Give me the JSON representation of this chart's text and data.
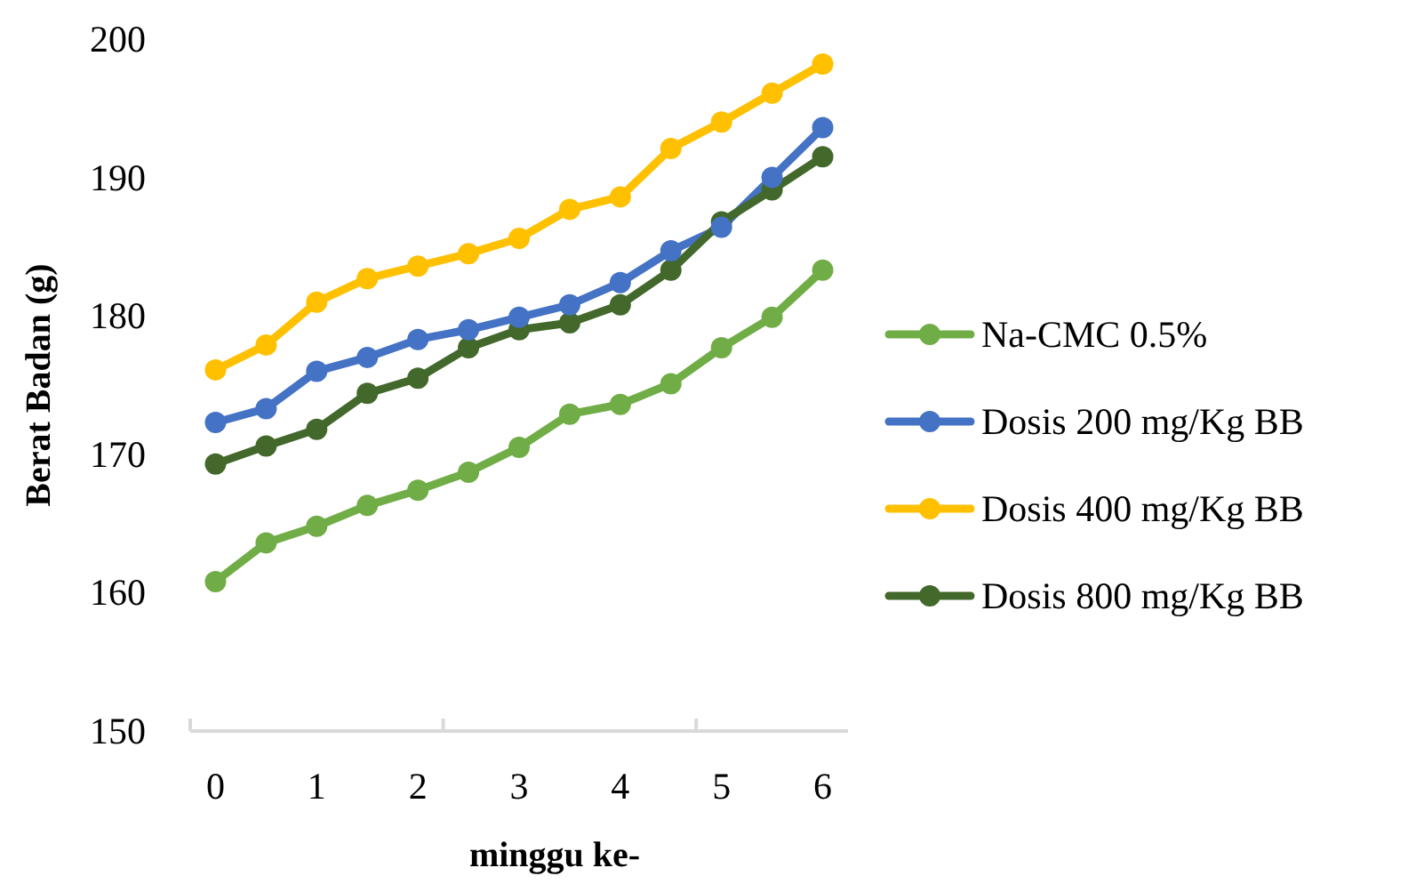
{
  "chart_data": {
    "type": "line",
    "xlabel": "minggu ke-",
    "ylabel": "Berat Badan (g)",
    "categories": [
      "0",
      null,
      "1",
      null,
      "2",
      null,
      "3",
      null,
      "4",
      null,
      "5",
      null,
      "6"
    ],
    "series": [
      {
        "name": "Na-CMC 0.5%",
        "color": "#70ad47",
        "values": [
          160.8,
          163.6,
          164.8,
          166.3,
          167.4,
          168.7,
          170.5,
          172.9,
          173.6,
          175.1,
          177.7,
          179.9,
          183.3
        ]
      },
      {
        "name": "Dosis 200 mg/Kg BB",
        "color": "#4472c4",
        "values": [
          172.3,
          173.3,
          176.0,
          177.0,
          178.3,
          179.0,
          179.9,
          180.8,
          182.4,
          184.7,
          186.4,
          190.0,
          193.6
        ]
      },
      {
        "name": "Dosis 400 mg/Kg BB",
        "color": "#ffc000",
        "values": [
          176.1,
          177.9,
          181.0,
          182.7,
          183.6,
          184.5,
          185.6,
          187.7,
          188.6,
          192.1,
          194.0,
          196.1,
          198.2
        ]
      },
      {
        "name": "Dosis 800 mg/Kg BB",
        "color": "#43682b",
        "values": [
          169.3,
          170.6,
          171.8,
          174.4,
          175.5,
          177.7,
          179.0,
          179.5,
          180.8,
          183.3,
          186.8,
          189.1,
          191.5
        ]
      }
    ],
    "ylim": [
      150,
      200
    ],
    "yticks": [
      150,
      160,
      170,
      180,
      190,
      200
    ],
    "legend": "right",
    "marker": "circle",
    "line_style": "solid",
    "grid": false
  }
}
